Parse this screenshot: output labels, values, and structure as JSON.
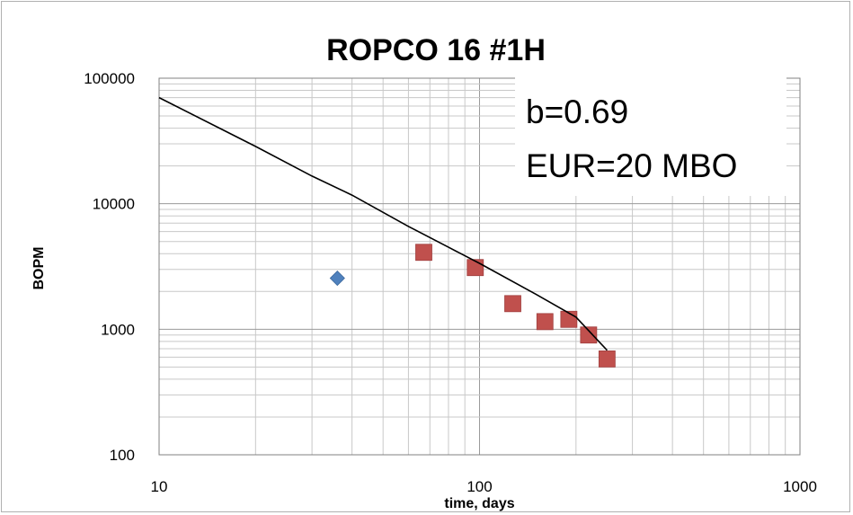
{
  "chart_data": {
    "type": "scatter",
    "title": "ROPCO 16 #1H",
    "xlabel": "time, days",
    "ylabel": "BOPM",
    "xscale": "log",
    "yscale": "log",
    "xlim": [
      10,
      1000
    ],
    "ylim": [
      100,
      100000
    ],
    "x_ticks": [
      "10",
      "100",
      "1000"
    ],
    "y_ticks": [
      "100",
      "1000",
      "10000",
      "100000"
    ],
    "grid": true,
    "legend": "none",
    "annotations": [
      "b=0.69",
      "EUR=20 MBO"
    ],
    "series": [
      {
        "marker": "diamond",
        "color": "#4f81bd",
        "points": [
          {
            "x": 36,
            "y": 2550
          }
        ]
      },
      {
        "marker": "square",
        "color": "#c0504d",
        "points": [
          {
            "x": 67,
            "y": 4100
          },
          {
            "x": 97,
            "y": 3100
          },
          {
            "x": 127,
            "y": 1600
          },
          {
            "x": 160,
            "y": 1150
          },
          {
            "x": 190,
            "y": 1200
          },
          {
            "x": 219,
            "y": 900
          },
          {
            "x": 250,
            "y": 580
          }
        ]
      },
      {
        "type": "line",
        "color": "#000000",
        "points": [
          {
            "x": 10,
            "y": 70000
          },
          {
            "x": 20,
            "y": 28600
          },
          {
            "x": 30,
            "y": 16600
          },
          {
            "x": 40,
            "y": 11700
          },
          {
            "x": 60,
            "y": 6600
          },
          {
            "x": 80,
            "y": 4500
          },
          {
            "x": 100,
            "y": 3350
          },
          {
            "x": 150,
            "y": 1900
          },
          {
            "x": 200,
            "y": 1250
          },
          {
            "x": 250,
            "y": 680
          }
        ]
      }
    ]
  }
}
